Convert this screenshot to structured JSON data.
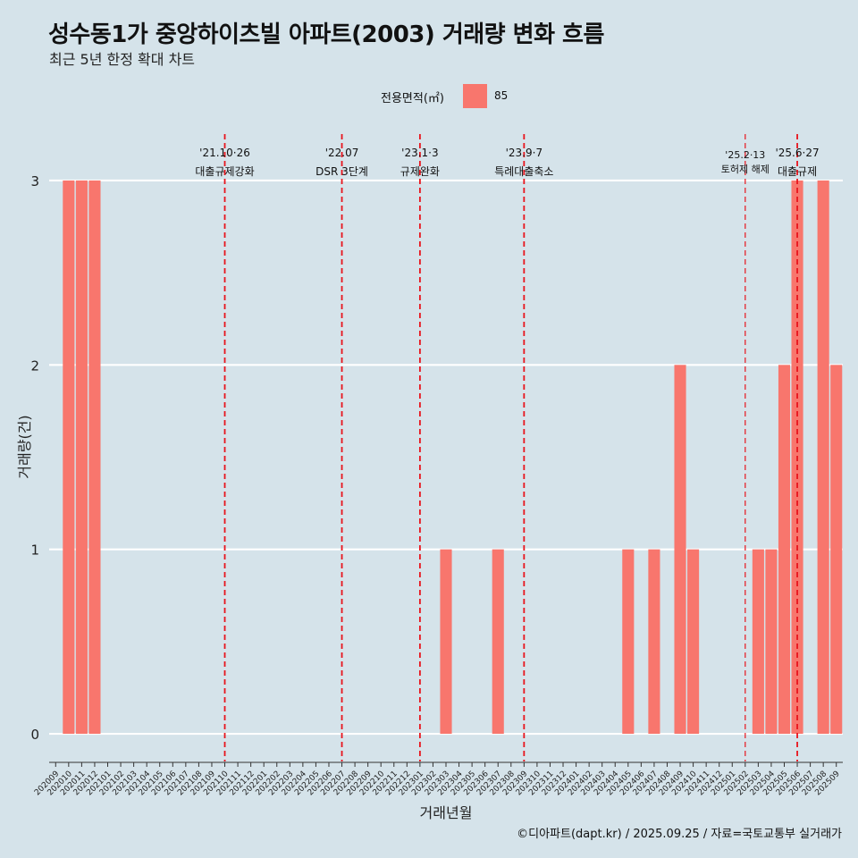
{
  "title": "성수동1가 중앙하이츠빌 아파트(2003) 거래량 변화 흐름",
  "subtitle": "최근 5년 한정 확대 차트",
  "caption": "©디아파트(dapt.kr) / 2025.09.25 / 자료=국토교통부 실거래가",
  "legend": {
    "title": "전용면적(㎡)",
    "label": "85"
  },
  "colors": {
    "background": "#d5e3ea",
    "bar": "#f8766d",
    "grid": "#ffffff",
    "event_line": "#e8141c"
  },
  "chart_data": {
    "type": "bar",
    "title": "성수동1가 중앙하이츠빌 아파트(2003) 거래량 변화 흐름",
    "xlabel": "거래년월",
    "ylabel": "거래량(건)",
    "ylim": [
      -0.15,
      3.3
    ],
    "yticks": [
      0,
      1,
      2,
      3
    ],
    "categories": [
      "202009",
      "202010",
      "202011",
      "202012",
      "202101",
      "202102",
      "202103",
      "202104",
      "202105",
      "202106",
      "202107",
      "202108",
      "202109",
      "202110",
      "202111",
      "202112",
      "202201",
      "202202",
      "202203",
      "202204",
      "202205",
      "202206",
      "202207",
      "202208",
      "202209",
      "202210",
      "202211",
      "202212",
      "202301",
      "202302",
      "202303",
      "202304",
      "202305",
      "202306",
      "202307",
      "202308",
      "202309",
      "202310",
      "202311",
      "202312",
      "202401",
      "202402",
      "202403",
      "202404",
      "202405",
      "202406",
      "202407",
      "202408",
      "202409",
      "202410",
      "202411",
      "202412",
      "202501",
      "202502",
      "202503",
      "202504",
      "202505",
      "202506",
      "202507",
      "202508",
      "202509"
    ],
    "series": [
      {
        "name": "85",
        "values": [
          0,
          3,
          3,
          3,
          0,
          0,
          0,
          0,
          0,
          0,
          0,
          0,
          0,
          0,
          0,
          0,
          0,
          0,
          0,
          0,
          0,
          0,
          0,
          0,
          0,
          0,
          0,
          0,
          0,
          0,
          1,
          0,
          0,
          0,
          1,
          0,
          0,
          0,
          0,
          0,
          0,
          0,
          0,
          0,
          1,
          0,
          1,
          0,
          2,
          1,
          0,
          0,
          0,
          0,
          1,
          1,
          2,
          3,
          0,
          3,
          2
        ]
      }
    ],
    "events": [
      {
        "date": "'21.10·26",
        "label": "대출규제강화",
        "at": "202110"
      },
      {
        "date": "'22.07",
        "label": "DSR 3단계",
        "at": "202207"
      },
      {
        "date": "'23.1·3",
        "label": "규제완화",
        "at": "202301"
      },
      {
        "date": "'23.9·7",
        "label": "특례대출축소",
        "at": "202309"
      },
      {
        "date": "'25.2·13",
        "label": "토허제 해제",
        "at": "202502",
        "small": true
      },
      {
        "date": "'25.6·27",
        "label": "대출규제",
        "at": "202506"
      }
    ]
  }
}
